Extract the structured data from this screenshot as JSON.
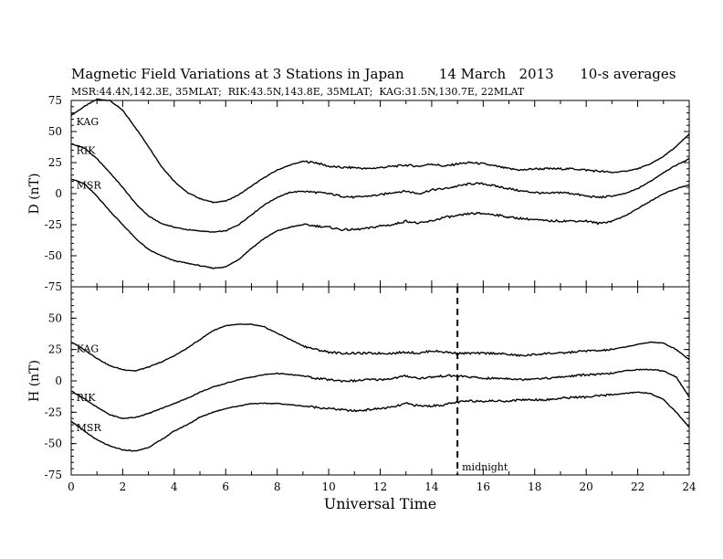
{
  "title": "Magnetic Field Variations at 3 Stations in Japan        14 March   2013      10-s averages",
  "stations": "MSR:44.4N,142.3E, 35MLAT;  RIK:43.5N,143.8E, 35MLAT;  KAG:31.5N,130.7E, 22MLAT",
  "chart_data": [
    {
      "type": "line",
      "panel": "D",
      "ylabel": "D (nT)",
      "xlabel": "",
      "xlim": [
        0,
        24
      ],
      "ylim": [
        -75,
        75
      ],
      "yticks": [
        75,
        50,
        25,
        0,
        -25,
        -50,
        -75
      ],
      "annotation": "",
      "series": [
        {
          "name": "KAG",
          "x": [
            0,
            0.5,
            1,
            1.5,
            2,
            2.5,
            3,
            3.5,
            4,
            4.5,
            5,
            5.5,
            6,
            6.5,
            7,
            7.5,
            8,
            8.5,
            9,
            9.5,
            10,
            10.5,
            11,
            11.5,
            12,
            12.5,
            13,
            13.5,
            14,
            14.5,
            15,
            15.5,
            16,
            16.5,
            17,
            17.5,
            18,
            18.5,
            19,
            19.5,
            20,
            20.5,
            21,
            21.5,
            22,
            22.5,
            23,
            23.5,
            24
          ],
          "y": [
            63,
            70,
            76,
            75,
            67,
            53,
            38,
            22,
            10,
            1,
            -4,
            -7,
            -6,
            -1,
            6,
            13,
            19,
            23,
            26,
            25,
            22,
            21,
            21,
            20,
            21,
            22,
            23,
            22,
            24,
            22,
            24,
            25,
            24,
            22,
            20,
            19,
            20,
            20,
            20,
            20,
            19,
            18,
            17,
            18,
            20,
            24,
            30,
            38,
            48
          ]
        },
        {
          "name": "RIK",
          "x": [
            0,
            0.5,
            1,
            1.5,
            2,
            2.5,
            3,
            3.5,
            4,
            4.5,
            5,
            5.5,
            6,
            6.5,
            7,
            7.5,
            8,
            8.5,
            9,
            9.5,
            10,
            10.5,
            11,
            11.5,
            12,
            12.5,
            13,
            13.5,
            14,
            14.5,
            15,
            15.5,
            16,
            16.5,
            17,
            17.5,
            18,
            18.5,
            19,
            19.5,
            20,
            20.5,
            21,
            21.5,
            22,
            22.5,
            23,
            23.5,
            24
          ],
          "y": [
            40,
            37,
            28,
            17,
            5,
            -8,
            -18,
            -24,
            -27,
            -29,
            -30,
            -31,
            -30,
            -25,
            -17,
            -9,
            -3,
            1,
            2,
            1,
            0,
            -2,
            -3,
            -2,
            -1,
            1,
            2,
            0,
            3,
            4,
            6,
            8,
            8,
            6,
            4,
            2,
            1,
            0,
            1,
            0,
            -2,
            -3,
            -2,
            0,
            4,
            10,
            17,
            23,
            28
          ]
        },
        {
          "name": "MSR",
          "x": [
            0,
            0.5,
            1,
            1.5,
            2,
            2.5,
            3,
            3.5,
            4,
            4.5,
            5,
            5.5,
            6,
            6.5,
            7,
            7.5,
            8,
            8.5,
            9,
            9.5,
            10,
            10.5,
            11,
            11.5,
            12,
            12.5,
            13,
            13.5,
            14,
            14.5,
            15,
            15.5,
            16,
            16.5,
            17,
            17.5,
            18,
            18.5,
            19,
            19.5,
            20,
            20.5,
            21,
            21.5,
            22,
            22.5,
            23,
            23.5,
            24
          ],
          "y": [
            12,
            8,
            -2,
            -14,
            -25,
            -36,
            -45,
            -50,
            -54,
            -56,
            -58,
            -60,
            -59,
            -53,
            -44,
            -36,
            -30,
            -27,
            -25,
            -26,
            -27,
            -29,
            -29,
            -28,
            -26,
            -25,
            -22,
            -24,
            -22,
            -19,
            -18,
            -16,
            -16,
            -17,
            -19,
            -20,
            -21,
            -22,
            -22,
            -22,
            -22,
            -24,
            -22,
            -18,
            -12,
            -6,
            0,
            4,
            7
          ]
        }
      ]
    },
    {
      "type": "line",
      "panel": "H",
      "ylabel": "H (nT)",
      "xlabel": "Universal Time",
      "xlim": [
        0,
        24
      ],
      "ylim": [
        -75,
        75
      ],
      "yticks": [
        50,
        25,
        0,
        -25,
        -50,
        -75
      ],
      "xticks": [
        0,
        2,
        4,
        6,
        8,
        10,
        12,
        14,
        16,
        18,
        20,
        22,
        24
      ],
      "annotation": "midnight",
      "annotation_x": 15,
      "series": [
        {
          "name": "KAG",
          "x": [
            0,
            0.5,
            1,
            1.5,
            2,
            2.5,
            3,
            3.5,
            4,
            4.5,
            5,
            5.5,
            6,
            6.5,
            7,
            7.5,
            8,
            8.5,
            9,
            9.5,
            10,
            10.5,
            11,
            11.5,
            12,
            12.5,
            13,
            13.5,
            14,
            14.5,
            15,
            15.5,
            16,
            16.5,
            17,
            17.5,
            18,
            18.5,
            19,
            19.5,
            20,
            20.5,
            21,
            21.5,
            22,
            22.5,
            23,
            23.5,
            24
          ],
          "y": [
            31,
            25,
            18,
            12,
            9,
            8,
            11,
            15,
            20,
            26,
            33,
            40,
            44,
            45,
            45,
            43,
            38,
            33,
            28,
            25,
            23,
            22,
            22,
            22,
            22,
            22,
            23,
            22,
            24,
            23,
            22,
            22,
            22,
            22,
            21,
            20,
            21,
            22,
            22,
            23,
            24,
            24,
            25,
            27,
            29,
            31,
            30,
            25,
            17
          ]
        },
        {
          "name": "RIK",
          "x": [
            0,
            0.5,
            1,
            1.5,
            2,
            2.5,
            3,
            3.5,
            4,
            4.5,
            5,
            5.5,
            6,
            6.5,
            7,
            7.5,
            8,
            8.5,
            9,
            9.5,
            10,
            10.5,
            11,
            11.5,
            12,
            12.5,
            13,
            13.5,
            14,
            14.5,
            15,
            15.5,
            16,
            16.5,
            17,
            17.5,
            18,
            18.5,
            19,
            19.5,
            20,
            20.5,
            21,
            21.5,
            22,
            22.5,
            23,
            23.5,
            24
          ],
          "y": [
            -8,
            -14,
            -21,
            -27,
            -30,
            -29,
            -26,
            -22,
            -18,
            -14,
            -9,
            -5,
            -2,
            1,
            3,
            5,
            6,
            5,
            4,
            2,
            1,
            0,
            0,
            1,
            1,
            2,
            4,
            2,
            3,
            4,
            4,
            3,
            2,
            2,
            2,
            1,
            2,
            2,
            3,
            4,
            5,
            5,
            6,
            8,
            9,
            9,
            8,
            3,
            -13
          ]
        },
        {
          "name": "MSR",
          "x": [
            0,
            0.5,
            1,
            1.5,
            2,
            2.5,
            3,
            3.5,
            4,
            4.5,
            5,
            5.5,
            6,
            6.5,
            7,
            7.5,
            8,
            8.5,
            9,
            9.5,
            10,
            10.5,
            11,
            11.5,
            12,
            12.5,
            13,
            13.5,
            14,
            14.5,
            15,
            15.5,
            16,
            16.5,
            17,
            17.5,
            18,
            18.5,
            19,
            19.5,
            20,
            20.5,
            21,
            21.5,
            22,
            22.5,
            23,
            23.5,
            24
          ],
          "y": [
            -32,
            -40,
            -47,
            -52,
            -55,
            -56,
            -53,
            -47,
            -40,
            -35,
            -29,
            -25,
            -22,
            -20,
            -18,
            -18,
            -18,
            -19,
            -20,
            -21,
            -22,
            -23,
            -24,
            -23,
            -22,
            -21,
            -18,
            -20,
            -20,
            -19,
            -17,
            -16,
            -16,
            -16,
            -16,
            -15,
            -15,
            -15,
            -14,
            -13,
            -13,
            -12,
            -11,
            -10,
            -9,
            -10,
            -15,
            -25,
            -37
          ]
        }
      ]
    }
  ]
}
